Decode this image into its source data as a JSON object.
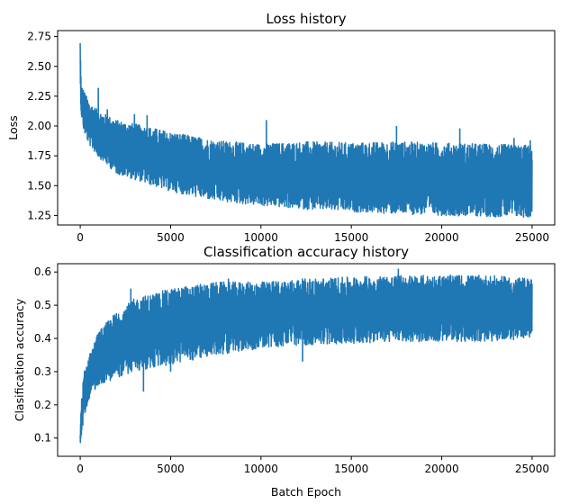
{
  "chart_data": [
    {
      "type": "line",
      "title": "Loss history",
      "xlabel": "",
      "ylabel": "Loss",
      "xlim": [
        -1250,
        26250
      ],
      "ylim": [
        1.17,
        2.8
      ],
      "xticks": [
        0,
        5000,
        10000,
        15000,
        20000,
        25000
      ],
      "xtick_labels": [
        "0",
        "5000",
        "10000",
        "15000",
        "20000",
        "25000"
      ],
      "yticks": [
        1.25,
        1.5,
        1.75,
        2.0,
        2.25,
        2.5,
        2.75
      ],
      "ytick_labels": [
        "1.25",
        "1.50",
        "1.75",
        "2.00",
        "2.25",
        "2.50",
        "2.75"
      ],
      "grid": false,
      "series": [
        {
          "color": "#1f77b4",
          "points": 25000,
          "envelope": {
            "x": [
              0,
              50,
              200,
              500,
              1000,
              2000,
              3000,
              5000,
              7500,
              10000,
              12500,
              15000,
              17500,
              20000,
              22500,
              25000
            ],
            "upper": [
              2.74,
              2.35,
              2.3,
              2.2,
              2.13,
              2.05,
              2.02,
              1.95,
              1.88,
              1.85,
              1.87,
              1.86,
              1.87,
              1.86,
              1.85,
              1.84
            ],
            "lower": [
              2.3,
              2.1,
              1.95,
              1.84,
              1.74,
              1.6,
              1.55,
              1.45,
              1.37,
              1.33,
              1.3,
              1.28,
              1.26,
              1.25,
              1.24,
              1.23
            ]
          },
          "spikes": [
            {
              "x": 1000,
              "y": 2.32
            },
            {
              "x": 1500,
              "y": 2.14
            },
            {
              "x": 3000,
              "y": 2.1
            },
            {
              "x": 3700,
              "y": 2.09
            },
            {
              "x": 10300,
              "y": 2.05
            },
            {
              "x": 17500,
              "y": 2.0
            },
            {
              "x": 21000,
              "y": 1.98
            },
            {
              "x": 24000,
              "y": 1.9
            },
            {
              "x": 24900,
              "y": 1.88
            }
          ]
        }
      ]
    },
    {
      "type": "line",
      "title": "Classification accuracy history",
      "xlabel": "Batch Epoch",
      "ylabel": "Clasification accuracy",
      "xlim": [
        -1250,
        26250
      ],
      "ylim": [
        0.045,
        0.625
      ],
      "xticks": [
        0,
        5000,
        10000,
        15000,
        20000,
        25000
      ],
      "xtick_labels": [
        "0",
        "5000",
        "10000",
        "15000",
        "20000",
        "25000"
      ],
      "yticks": [
        0.1,
        0.2,
        0.3,
        0.4,
        0.5,
        0.6
      ],
      "ytick_labels": [
        "0.1",
        "0.2",
        "0.3",
        "0.4",
        "0.5",
        "0.6"
      ],
      "grid": false,
      "series": [
        {
          "color": "#1f77b4",
          "points": 25000,
          "envelope": {
            "x": [
              0,
              50,
              200,
              500,
              1000,
              2000,
              3000,
              5000,
              7500,
              10000,
              12500,
              15000,
              17500,
              20000,
              22500,
              25000
            ],
            "upper": [
              0.12,
              0.2,
              0.3,
              0.35,
              0.42,
              0.48,
              0.52,
              0.55,
              0.57,
              0.57,
              0.58,
              0.585,
              0.59,
              0.59,
              0.59,
              0.58
            ],
            "lower": [
              0.07,
              0.1,
              0.16,
              0.22,
              0.26,
              0.28,
              0.3,
              0.32,
              0.35,
              0.37,
              0.38,
              0.385,
              0.39,
              0.39,
              0.39,
              0.4
            ]
          },
          "spikes": [
            {
              "x": 2800,
              "y": 0.55
            },
            {
              "x": 8200,
              "y": 0.58
            },
            {
              "x": 17600,
              "y": 0.61
            },
            {
              "x": 12300,
              "y": 0.33
            },
            {
              "x": 3500,
              "y": 0.24
            },
            {
              "x": 5000,
              "y": 0.3
            }
          ]
        }
      ]
    }
  ]
}
